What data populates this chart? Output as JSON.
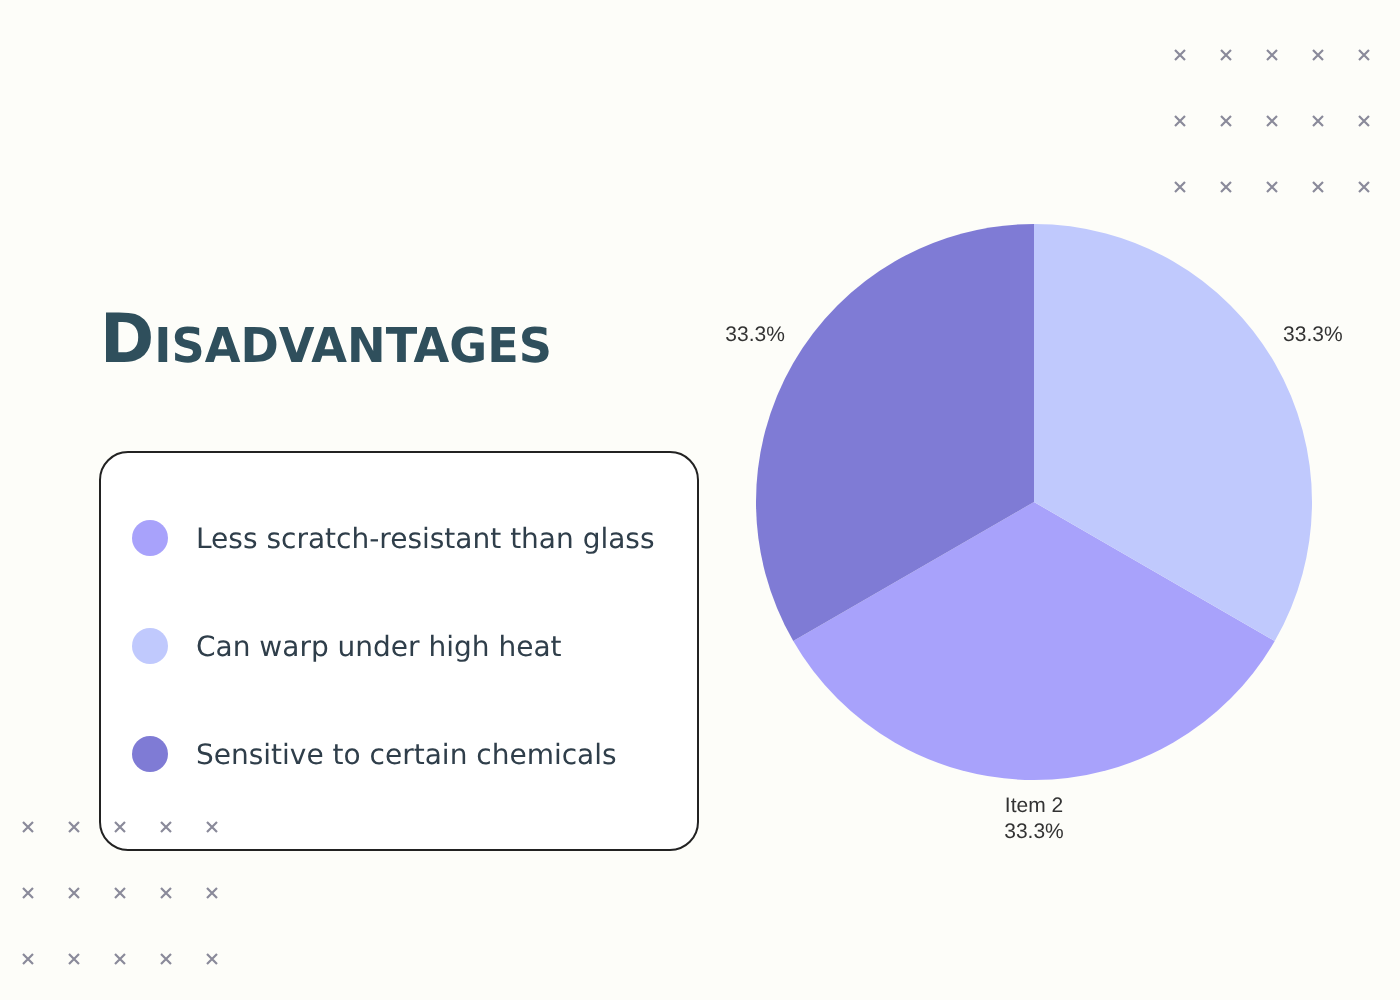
{
  "chart_data": {
    "type": "pie",
    "title": "Disadvantages",
    "categories": [
      "Less scratch-resistant than glass",
      "Can warp under high heat",
      "Sensitive to certain chemicals"
    ],
    "values": [
      33.3,
      33.3,
      33.3
    ],
    "colors": [
      "#a8a2fb",
      "#c0c9fd",
      "#7f7bd5"
    ],
    "value_labels": [
      "Item 2\n33.3%",
      "33.3%",
      "33.3%"
    ],
    "legend": "left"
  }
}
